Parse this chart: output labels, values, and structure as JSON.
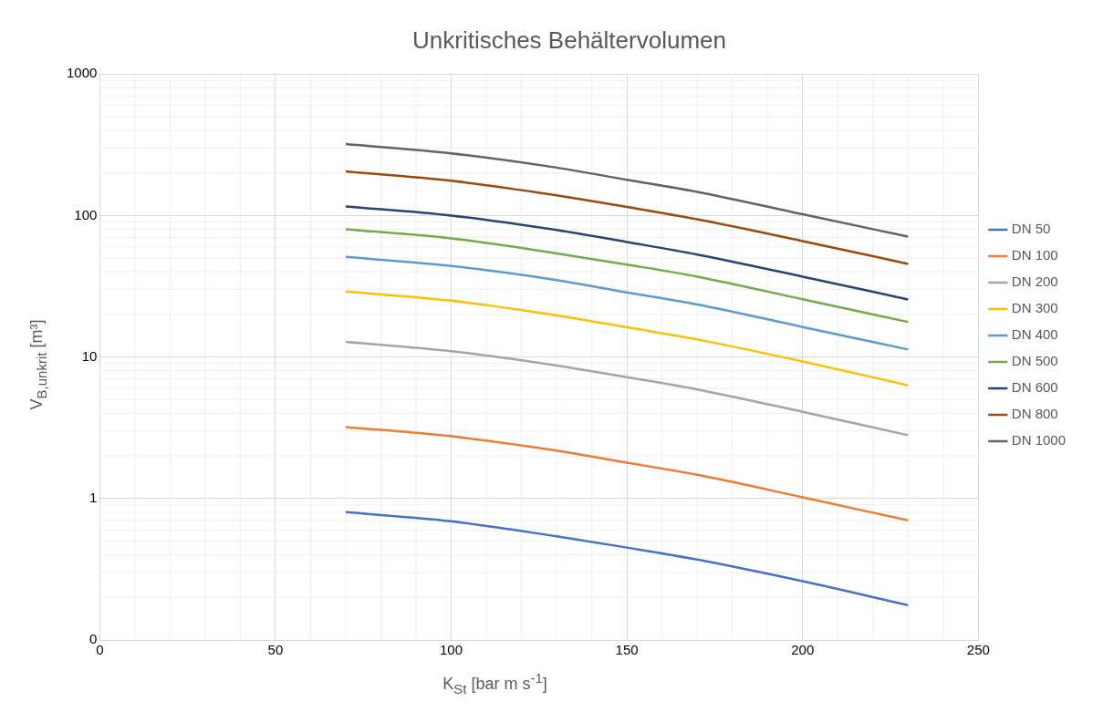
{
  "chart_data": {
    "type": "line",
    "title": "Unkritisches Behältervolumen",
    "xlabel": "K$_{St}$ [bar m s$^{-1}$]",
    "ylabel": "V$_{B,unkrit}$ [m³]",
    "x": [
      70,
      100,
      130,
      150,
      170,
      200,
      230
    ],
    "xlim": [
      0,
      250
    ],
    "xticks": [
      0,
      50,
      100,
      150,
      200,
      250
    ],
    "ylim": [
      0.1,
      1000
    ],
    "yticks": [
      {
        "value": 0.1,
        "label": "0"
      },
      1,
      10,
      100,
      1000
    ],
    "log": "y",
    "grid": true,
    "legend": "right",
    "marker": "none",
    "line_style": "solid",
    "series": [
      {
        "name": "DN 50",
        "color": "#4472c4",
        "values": [
          0.8,
          0.69,
          0.54,
          0.45,
          0.37,
          0.26,
          0.176
        ]
      },
      {
        "name": "DN 100",
        "color": "#ed7d31",
        "values": [
          3.2,
          2.75,
          2.18,
          1.79,
          1.47,
          1.02,
          0.7
        ]
      },
      {
        "name": "DN 200",
        "color": "#a5a5a5",
        "values": [
          12.8,
          11,
          8.7,
          7.2,
          5.9,
          4.1,
          2.8
        ]
      },
      {
        "name": "DN 300",
        "color": "#ffc000",
        "values": [
          29,
          25,
          19.7,
          16.2,
          13.3,
          9.3,
          6.3
        ]
      },
      {
        "name": "DN 400",
        "color": "#5b9bd5",
        "values": [
          51,
          44,
          35,
          28.6,
          23.5,
          16.3,
          11.3
        ]
      },
      {
        "name": "DN 500",
        "color": "#70ad47",
        "values": [
          80,
          69,
          54,
          45,
          37,
          25.6,
          17.7
        ]
      },
      {
        "name": "DN 600",
        "color": "#264478",
        "values": [
          116,
          100,
          79,
          65,
          53,
          37,
          25.5
        ]
      },
      {
        "name": "DN 800",
        "color": "#9e480e",
        "values": [
          205,
          176,
          139,
          115,
          94,
          66,
          45.5
        ]
      },
      {
        "name": "DN 1000",
        "color": "#636363",
        "values": [
          320,
          275,
          218,
          179,
          147,
          102,
          71
        ]
      }
    ]
  }
}
